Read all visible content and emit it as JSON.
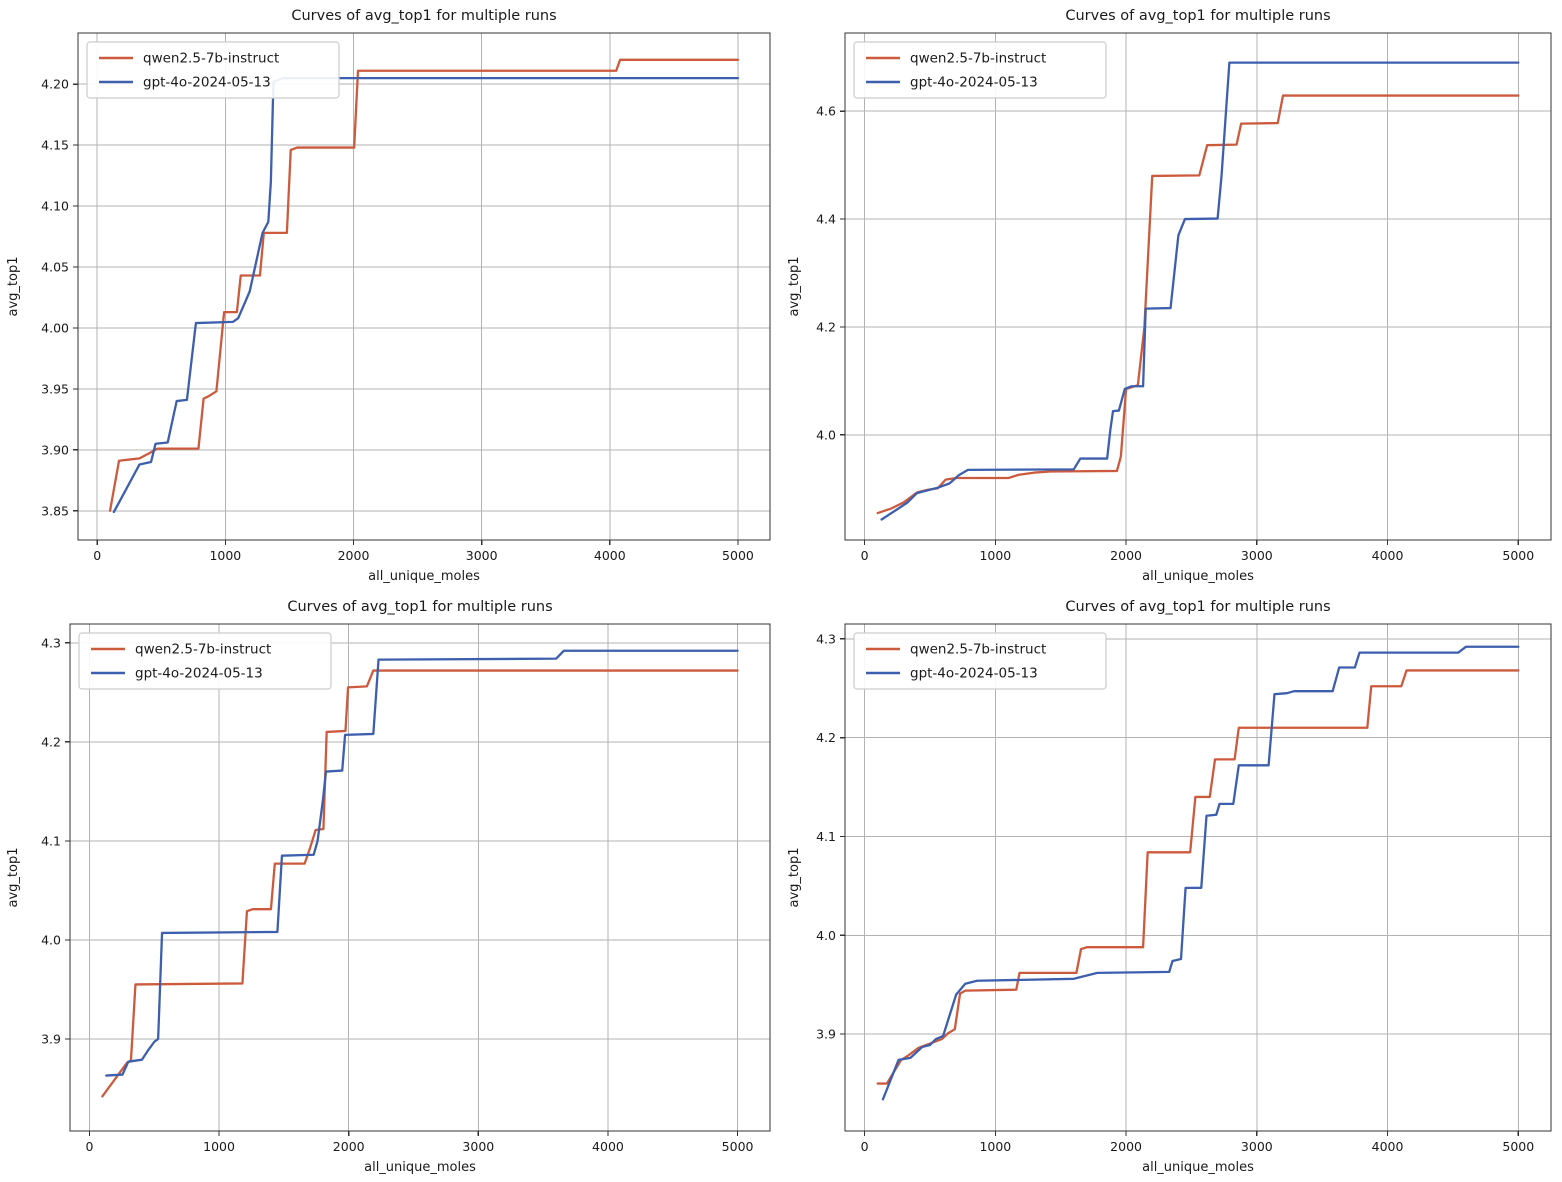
{
  "figure_title": "Curves of avg_top1 for multiple runs",
  "colors": {
    "qwen": "#cc5a3d",
    "gpt": "#3d5fad",
    "grid": "#b3b3b3",
    "spine": "#333333",
    "background": "#ffffff",
    "legend_border": "#cccccc"
  },
  "chart_data": [
    {
      "type": "line",
      "position": "top-left",
      "title": "Curves of avg_top1 for multiple runs",
      "xlabel": "all_unique_moles",
      "ylabel": "avg_top1",
      "legend_position": "upper left",
      "grid": true,
      "xlim": [
        -150,
        5250
      ],
      "ylim": [
        3.826,
        4.242
      ],
      "xticks": [
        0,
        1000,
        2000,
        3000,
        4000,
        5000
      ],
      "xtick_labels": [
        "0",
        "1000",
        "2000",
        "3000",
        "4000",
        "5000"
      ],
      "yticks": [
        3.85,
        3.9,
        3.95,
        4.0,
        4.05,
        4.1,
        4.15,
        4.2
      ],
      "ytick_labels": [
        "3.85",
        "3.90",
        "3.95",
        "4.00",
        "4.05",
        "4.10",
        "4.15",
        "4.20"
      ],
      "series": [
        {
          "name": "qwen2.5-7b-instruct",
          "color": "#cc5a3d",
          "points": [
            [
              100,
              3.85
            ],
            [
              170,
              3.891
            ],
            [
              330,
              3.893
            ],
            [
              420,
              3.898
            ],
            [
              470,
              3.901
            ],
            [
              790,
              3.901
            ],
            [
              830,
              3.942
            ],
            [
              870,
              3.944
            ],
            [
              930,
              3.948
            ],
            [
              990,
              4.013
            ],
            [
              1090,
              4.013
            ],
            [
              1120,
              4.043
            ],
            [
              1270,
              4.043
            ],
            [
              1300,
              4.078
            ],
            [
              1480,
              4.078
            ],
            [
              1510,
              4.146
            ],
            [
              1560,
              4.148
            ],
            [
              2005,
              4.148
            ],
            [
              2035,
              4.211
            ],
            [
              4050,
              4.211
            ],
            [
              4080,
              4.22
            ],
            [
              5000,
              4.22
            ]
          ]
        },
        {
          "name": "gpt-4o-2024-05-13",
          "color": "#3d5fad",
          "points": [
            [
              130,
              3.849
            ],
            [
              330,
              3.888
            ],
            [
              420,
              3.89
            ],
            [
              455,
              3.905
            ],
            [
              550,
              3.906
            ],
            [
              620,
              3.94
            ],
            [
              700,
              3.941
            ],
            [
              770,
              4.004
            ],
            [
              1060,
              4.005
            ],
            [
              1100,
              4.008
            ],
            [
              1190,
              4.03
            ],
            [
              1290,
              4.078
            ],
            [
              1335,
              4.087
            ],
            [
              1355,
              4.12
            ],
            [
              1375,
              4.202
            ],
            [
              1450,
              4.205
            ],
            [
              5000,
              4.205
            ]
          ]
        }
      ]
    },
    {
      "type": "line",
      "position": "top-right",
      "title": "Curves of avg_top1 for multiple runs",
      "xlabel": "all_unique_moles",
      "ylabel": "avg_top1",
      "legend_position": "upper left",
      "grid": true,
      "xlim": [
        -150,
        5250
      ],
      "ylim": [
        3.805,
        4.745
      ],
      "xticks": [
        0,
        1000,
        2000,
        3000,
        4000,
        5000
      ],
      "xtick_labels": [
        "0",
        "1000",
        "2000",
        "3000",
        "4000",
        "5000"
      ],
      "yticks": [
        4.0,
        4.2,
        4.4,
        4.6
      ],
      "ytick_labels": [
        "4.0",
        "4.2",
        "4.4",
        "4.6"
      ],
      "series": [
        {
          "name": "qwen2.5-7b-instruct",
          "color": "#cc5a3d",
          "points": [
            [
              100,
              3.855
            ],
            [
              200,
              3.863
            ],
            [
              300,
              3.875
            ],
            [
              400,
              3.893
            ],
            [
              480,
              3.898
            ],
            [
              560,
              3.901
            ],
            [
              620,
              3.917
            ],
            [
              700,
              3.92
            ],
            [
              1100,
              3.92
            ],
            [
              1180,
              3.926
            ],
            [
              1300,
              3.93
            ],
            [
              1420,
              3.932
            ],
            [
              1930,
              3.933
            ],
            [
              1960,
              3.96
            ],
            [
              2000,
              4.085
            ],
            [
              2090,
              4.092
            ],
            [
              2140,
              4.2
            ],
            [
              2200,
              4.48
            ],
            [
              2560,
              4.481
            ],
            [
              2620,
              4.537
            ],
            [
              2845,
              4.538
            ],
            [
              2880,
              4.577
            ],
            [
              3160,
              4.578
            ],
            [
              3200,
              4.629
            ],
            [
              5000,
              4.629
            ]
          ]
        },
        {
          "name": "gpt-4o-2024-05-13",
          "color": "#3d5fad",
          "points": [
            [
              130,
              3.843
            ],
            [
              250,
              3.862
            ],
            [
              330,
              3.875
            ],
            [
              400,
              3.892
            ],
            [
              480,
              3.897
            ],
            [
              560,
              3.902
            ],
            [
              650,
              3.91
            ],
            [
              720,
              3.925
            ],
            [
              790,
              3.935
            ],
            [
              1600,
              3.936
            ],
            [
              1650,
              3.956
            ],
            [
              1855,
              3.956
            ],
            [
              1880,
              4.01
            ],
            [
              1900,
              4.044
            ],
            [
              1945,
              4.045
            ],
            [
              1990,
              4.085
            ],
            [
              2040,
              4.09
            ],
            [
              2130,
              4.09
            ],
            [
              2150,
              4.234
            ],
            [
              2340,
              4.235
            ],
            [
              2400,
              4.37
            ],
            [
              2450,
              4.4
            ],
            [
              2700,
              4.401
            ],
            [
              2730,
              4.48
            ],
            [
              2790,
              4.69
            ],
            [
              5000,
              4.69
            ]
          ]
        }
      ]
    },
    {
      "type": "line",
      "position": "bottom-left",
      "title": "Curves of avg_top1 for multiple runs",
      "xlabel": "all_unique_moles",
      "ylabel": "avg_top1",
      "legend_position": "upper left",
      "grid": true,
      "xlim": [
        -150,
        5250
      ],
      "ylim": [
        3.807,
        4.319
      ],
      "xticks": [
        0,
        1000,
        2000,
        3000,
        4000,
        5000
      ],
      "xtick_labels": [
        "0",
        "1000",
        "2000",
        "3000",
        "4000",
        "5000"
      ],
      "yticks": [
        3.9,
        4.0,
        4.1,
        4.2,
        4.3
      ],
      "ytick_labels": [
        "3.9",
        "4.0",
        "4.1",
        "4.2",
        "4.3"
      ],
      "series": [
        {
          "name": "qwen2.5-7b-instruct",
          "color": "#cc5a3d",
          "points": [
            [
              100,
              3.842
            ],
            [
              290,
              3.876
            ],
            [
              320,
              3.878
            ],
            [
              355,
              3.955
            ],
            [
              1180,
              3.956
            ],
            [
              1215,
              4.029
            ],
            [
              1260,
              4.031
            ],
            [
              1400,
              4.031
            ],
            [
              1430,
              4.077
            ],
            [
              1660,
              4.077
            ],
            [
              1700,
              4.092
            ],
            [
              1745,
              4.111
            ],
            [
              1805,
              4.112
            ],
            [
              1830,
              4.21
            ],
            [
              1975,
              4.211
            ],
            [
              1995,
              4.255
            ],
            [
              2140,
              4.256
            ],
            [
              2190,
              4.272
            ],
            [
              5000,
              4.272
            ]
          ]
        },
        {
          "name": "gpt-4o-2024-05-13",
          "color": "#3d5fad",
          "points": [
            [
              130,
              3.863
            ],
            [
              255,
              3.864
            ],
            [
              300,
              3.877
            ],
            [
              405,
              3.879
            ],
            [
              450,
              3.888
            ],
            [
              500,
              3.897
            ],
            [
              530,
              3.9
            ],
            [
              560,
              4.007
            ],
            [
              1450,
              4.008
            ],
            [
              1485,
              4.085
            ],
            [
              1730,
              4.086
            ],
            [
              1760,
              4.1
            ],
            [
              1800,
              4.14
            ],
            [
              1825,
              4.17
            ],
            [
              1950,
              4.171
            ],
            [
              1972,
              4.207
            ],
            [
              2190,
              4.208
            ],
            [
              2230,
              4.283
            ],
            [
              3600,
              4.284
            ],
            [
              3660,
              4.292
            ],
            [
              5000,
              4.292
            ]
          ]
        }
      ]
    },
    {
      "type": "line",
      "position": "bottom-right",
      "title": "Curves of avg_top1 for multiple runs",
      "xlabel": "all_unique_moles",
      "ylabel": "avg_top1",
      "legend_position": "upper left",
      "grid": true,
      "xlim": [
        -150,
        5250
      ],
      "ylim": [
        3.802,
        4.315
      ],
      "xticks": [
        0,
        1000,
        2000,
        3000,
        4000,
        5000
      ],
      "xtick_labels": [
        "0",
        "1000",
        "2000",
        "3000",
        "4000",
        "5000"
      ],
      "yticks": [
        3.9,
        4.0,
        4.1,
        4.2,
        4.3
      ],
      "ytick_labels": [
        "3.9",
        "4.0",
        "4.1",
        "4.2",
        "4.3"
      ],
      "series": [
        {
          "name": "qwen2.5-7b-instruct",
          "color": "#cc5a3d",
          "points": [
            [
              100,
              3.85
            ],
            [
              170,
              3.85
            ],
            [
              280,
              3.874
            ],
            [
              330,
              3.878
            ],
            [
              410,
              3.886
            ],
            [
              490,
              3.89
            ],
            [
              590,
              3.895
            ],
            [
              640,
              3.901
            ],
            [
              690,
              3.905
            ],
            [
              730,
              3.941
            ],
            [
              770,
              3.944
            ],
            [
              1160,
              3.945
            ],
            [
              1185,
              3.962
            ],
            [
              1620,
              3.962
            ],
            [
              1655,
              3.986
            ],
            [
              1700,
              3.988
            ],
            [
              2130,
              3.988
            ],
            [
              2165,
              4.084
            ],
            [
              2490,
              4.084
            ],
            [
              2530,
              4.14
            ],
            [
              2640,
              4.14
            ],
            [
              2680,
              4.178
            ],
            [
              2830,
              4.178
            ],
            [
              2862,
              4.21
            ],
            [
              3845,
              4.21
            ],
            [
              3875,
              4.252
            ],
            [
              4105,
              4.252
            ],
            [
              4145,
              4.268
            ],
            [
              5000,
              4.268
            ]
          ]
        },
        {
          "name": "gpt-4o-2024-05-13",
          "color": "#3d5fad",
          "points": [
            [
              140,
              3.834
            ],
            [
              230,
              3.864
            ],
            [
              260,
              3.874
            ],
            [
              350,
              3.876
            ],
            [
              440,
              3.887
            ],
            [
              500,
              3.889
            ],
            [
              545,
              3.895
            ],
            [
              600,
              3.898
            ],
            [
              700,
              3.94
            ],
            [
              770,
              3.951
            ],
            [
              860,
              3.954
            ],
            [
              1600,
              3.956
            ],
            [
              1780,
              3.962
            ],
            [
              2330,
              3.963
            ],
            [
              2355,
              3.974
            ],
            [
              2420,
              3.976
            ],
            [
              2455,
              4.048
            ],
            [
              2575,
              4.048
            ],
            [
              2615,
              4.121
            ],
            [
              2690,
              4.122
            ],
            [
              2715,
              4.133
            ],
            [
              2820,
              4.133
            ],
            [
              2862,
              4.172
            ],
            [
              3090,
              4.172
            ],
            [
              3135,
              4.244
            ],
            [
              3230,
              4.245
            ],
            [
              3285,
              4.247
            ],
            [
              3580,
              4.247
            ],
            [
              3630,
              4.271
            ],
            [
              3750,
              4.271
            ],
            [
              3785,
              4.286
            ],
            [
              4540,
              4.286
            ],
            [
              4600,
              4.292
            ],
            [
              5000,
              4.292
            ]
          ]
        }
      ]
    }
  ]
}
